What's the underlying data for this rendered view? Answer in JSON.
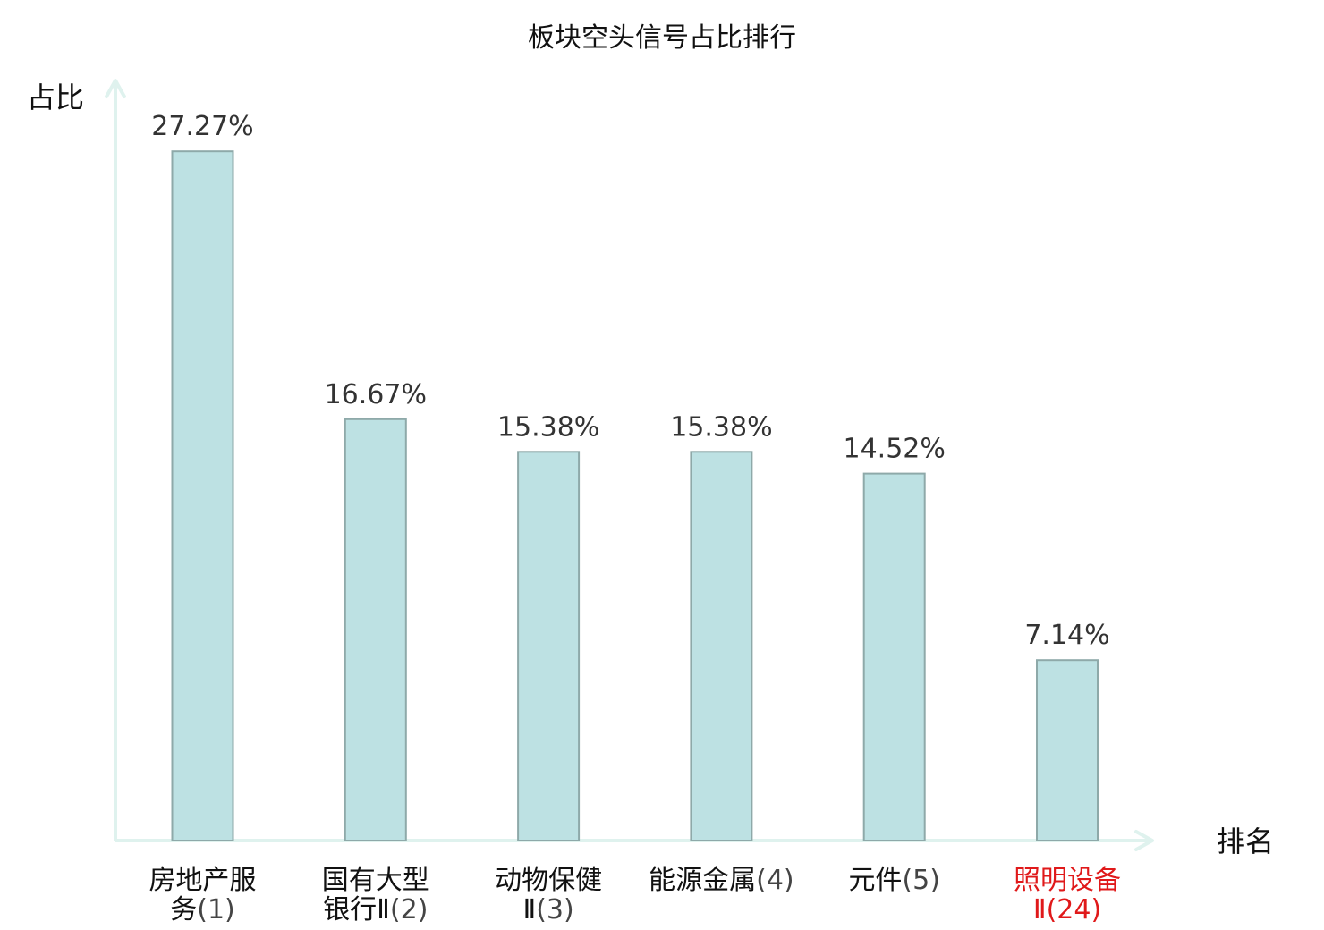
{
  "chart_data": {
    "type": "bar",
    "title": "板块空头信号占比排行",
    "ylabel": "占比",
    "xlabel": "排名",
    "categories": [
      {
        "name_lines": [
          "房地产服",
          "务"
        ],
        "rank": "(1)",
        "highlight": false
      },
      {
        "name_lines": [
          "国有大型",
          "银行Ⅱ"
        ],
        "rank": "(2)",
        "highlight": false
      },
      {
        "name_lines": [
          "动物保健",
          "Ⅱ"
        ],
        "rank": "(3)",
        "highlight": false
      },
      {
        "name_lines": [
          "能源金属"
        ],
        "rank": "(4)",
        "highlight": false
      },
      {
        "name_lines": [
          "元件"
        ],
        "rank": "(5)",
        "highlight": false
      },
      {
        "name_lines": [
          "照明设备",
          "Ⅱ"
        ],
        "rank": "(24)",
        "highlight": true
      }
    ],
    "values": [
      27.27,
      16.67,
      15.38,
      15.38,
      14.52,
      7.14
    ],
    "value_labels": [
      "27.27%",
      "16.67%",
      "15.38%",
      "15.38%",
      "14.52%",
      "7.14%"
    ],
    "ylim": [
      0,
      30
    ],
    "grid": false,
    "colors": {
      "bar_fill": "#bde1e3",
      "bar_stroke": "#8ea9a9",
      "axis": "#dff2ee",
      "highlight_text": "#e0191a",
      "text": "#111111"
    }
  }
}
